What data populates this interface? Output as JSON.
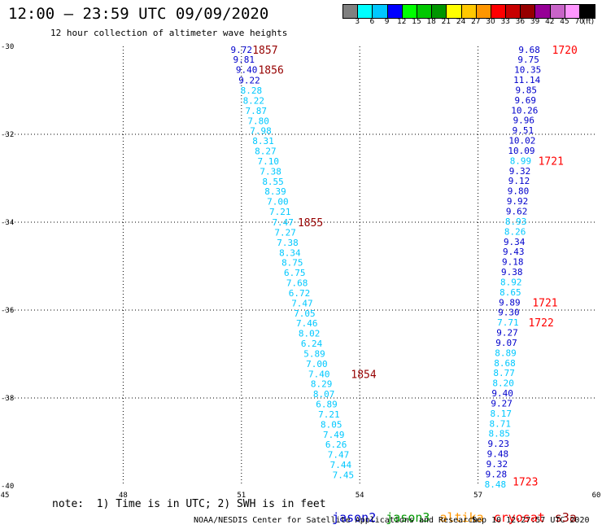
{
  "header": {
    "title": "12:00 — 23:59 UTC 09/09/2020",
    "subtitle": "12 hour collection of altimeter wave heights"
  },
  "colorbar": {
    "colors": [
      "#808080",
      "#00ffff",
      "#00c8ff",
      "#0000ff",
      "#00ff00",
      "#00c800",
      "#009600",
      "#ffff00",
      "#ffc800",
      "#ff9600",
      "#ff0000",
      "#c80000",
      "#960000",
      "#960096",
      "#c864c8",
      "#ff96ff",
      "#000000"
    ],
    "labels": [
      "3",
      "6",
      "9",
      "12",
      "15",
      "18",
      "21",
      "24",
      "27",
      "30",
      "33",
      "36",
      "39",
      "42",
      "45",
      "70",
      "(ft)"
    ]
  },
  "footer": {
    "note": "note:  1) Time is in UTC; 2) SWH is in feet",
    "legend": [
      {
        "name": "jason2",
        "color": "#0000cc"
      },
      {
        "name": "jason3",
        "color": "#009600"
      },
      {
        "name": "altika",
        "color": "#ff9600"
      },
      {
        "name": "cryosat",
        "color": "#ff0000"
      },
      {
        "name": "s3a",
        "color": "#960000"
      }
    ],
    "credit": "NOAA/NESDIS Center for Satellite Applications and Research",
    "timestamp": "Sep 10 12:27:57 UTC 2020"
  },
  "chart_data": {
    "type": "scatter",
    "title": "12:00 — 23:59 UTC 09/09/2020",
    "xlabel": "",
    "ylabel": "",
    "xlim": [
      45,
      60
    ],
    "ylim": [
      -40,
      -30
    ],
    "x_ticks": [
      45,
      48,
      51,
      54,
      57,
      60
    ],
    "y_ticks": [
      -30,
      -32,
      -34,
      -36,
      -38,
      -40
    ],
    "grid": true,
    "series": [
      {
        "name": "s3a",
        "color": "#960000",
        "points": [
          {
            "lon": 51.0,
            "lat": -30.07,
            "swh": "9.72",
            "c": "#0000cc"
          },
          {
            "lon": 51.06,
            "lat": -30.3,
            "swh": "9.81",
            "c": "#0000cc"
          },
          {
            "lon": 51.13,
            "lat": -30.53,
            "swh": "9.40",
            "c": "#0000cc"
          },
          {
            "lon": 51.2,
            "lat": -30.77,
            "swh": "9.22",
            "c": "#0000cc"
          },
          {
            "lon": 51.25,
            "lat": -31.0,
            "swh": "8.28",
            "c": "#00c8ff"
          },
          {
            "lon": 51.31,
            "lat": -31.23,
            "swh": "8.22",
            "c": "#00c8ff"
          },
          {
            "lon": 51.37,
            "lat": -31.46,
            "swh": "7.87",
            "c": "#00c8ff"
          },
          {
            "lon": 51.43,
            "lat": -31.69,
            "swh": "7.80",
            "c": "#00c8ff"
          },
          {
            "lon": 51.49,
            "lat": -31.92,
            "swh": "7.98",
            "c": "#00c8ff"
          },
          {
            "lon": 51.55,
            "lat": -32.15,
            "swh": "8.31",
            "c": "#00c8ff"
          },
          {
            "lon": 51.61,
            "lat": -32.38,
            "swh": "8.27",
            "c": "#00c8ff"
          },
          {
            "lon": 51.68,
            "lat": -32.61,
            "swh": "7.10",
            "c": "#00c8ff"
          },
          {
            "lon": 51.74,
            "lat": -32.84,
            "swh": "7.38",
            "c": "#00c8ff"
          },
          {
            "lon": 51.8,
            "lat": -33.07,
            "swh": "8.55",
            "c": "#00c8ff"
          },
          {
            "lon": 51.86,
            "lat": -33.3,
            "swh": "8.39",
            "c": "#00c8ff"
          },
          {
            "lon": 51.92,
            "lat": -33.53,
            "swh": "7.00",
            "c": "#00c8ff"
          },
          {
            "lon": 51.98,
            "lat": -33.76,
            "swh": "7.21",
            "c": "#00c8ff"
          },
          {
            "lon": 52.05,
            "lat": -34.0,
            "swh": "7.47",
            "c": "#00c8ff"
          },
          {
            "lon": 52.11,
            "lat": -34.23,
            "swh": "7.27",
            "c": "#00c8ff"
          },
          {
            "lon": 52.17,
            "lat": -34.46,
            "swh": "7.38",
            "c": "#00c8ff"
          },
          {
            "lon": 52.23,
            "lat": -34.69,
            "swh": "8.34",
            "c": "#00c8ff"
          },
          {
            "lon": 52.29,
            "lat": -34.92,
            "swh": "8.75",
            "c": "#00c8ff"
          },
          {
            "lon": 52.35,
            "lat": -35.15,
            "swh": "6.75",
            "c": "#00c8ff"
          },
          {
            "lon": 52.41,
            "lat": -35.38,
            "swh": "7.68",
            "c": "#00c8ff"
          },
          {
            "lon": 52.47,
            "lat": -35.61,
            "swh": "6.72",
            "c": "#00c8ff"
          },
          {
            "lon": 52.54,
            "lat": -35.84,
            "swh": "7.47",
            "c": "#00c8ff"
          },
          {
            "lon": 52.6,
            "lat": -36.07,
            "swh": "7.05",
            "c": "#00c8ff"
          },
          {
            "lon": 52.66,
            "lat": -36.3,
            "swh": "7.46",
            "c": "#00c8ff"
          },
          {
            "lon": 52.72,
            "lat": -36.53,
            "swh": "8.02",
            "c": "#00c8ff"
          },
          {
            "lon": 52.78,
            "lat": -36.76,
            "swh": "6.24",
            "c": "#00c8ff"
          },
          {
            "lon": 52.85,
            "lat": -36.99,
            "swh": "5.89",
            "c": "#00c8ff"
          },
          {
            "lon": 52.91,
            "lat": -37.22,
            "swh": "7.00",
            "c": "#00c8ff"
          },
          {
            "lon": 52.97,
            "lat": -37.45,
            "swh": "7.40",
            "c": "#00c8ff"
          },
          {
            "lon": 53.03,
            "lat": -37.68,
            "swh": "8.29",
            "c": "#00c8ff"
          },
          {
            "lon": 53.09,
            "lat": -37.91,
            "swh": "8.07",
            "c": "#00c8ff"
          },
          {
            "lon": 53.16,
            "lat": -38.14,
            "swh": "6.89",
            "c": "#00c8ff"
          },
          {
            "lon": 53.22,
            "lat": -38.37,
            "swh": "7.21",
            "c": "#00c8ff"
          },
          {
            "lon": 53.28,
            "lat": -38.6,
            "swh": "8.05",
            "c": "#00c8ff"
          },
          {
            "lon": 53.34,
            "lat": -38.83,
            "swh": "7.49",
            "c": "#00c8ff"
          },
          {
            "lon": 53.4,
            "lat": -39.06,
            "swh": "6.26",
            "c": "#00c8ff"
          },
          {
            "lon": 53.46,
            "lat": -39.29,
            "swh": "7.47",
            "c": "#00c8ff"
          },
          {
            "lon": 53.52,
            "lat": -39.52,
            "swh": "7.44",
            "c": "#00c8ff"
          },
          {
            "lon": 53.58,
            "lat": -39.75,
            "swh": "7.45",
            "c": "#00c8ff"
          }
        ],
        "time_labels": [
          {
            "lon": 51.6,
            "lat": -30.07,
            "text": "1857"
          },
          {
            "lon": 51.75,
            "lat": -30.53,
            "text": "1856"
          },
          {
            "lon": 52.75,
            "lat": -34.0,
            "text": "1855"
          },
          {
            "lon": 54.1,
            "lat": -37.45,
            "text": "1854"
          }
        ]
      },
      {
        "name": "cryosat",
        "color": "#ff0000",
        "points": [
          {
            "lon": 58.3,
            "lat": -30.07,
            "swh": "9.68",
            "c": "#0000cc"
          },
          {
            "lon": 58.28,
            "lat": -30.3,
            "swh": "9.75",
            "c": "#0000cc"
          },
          {
            "lon": 58.26,
            "lat": -30.53,
            "swh": "10.35",
            "c": "#0000cc"
          },
          {
            "lon": 58.24,
            "lat": -30.76,
            "swh": "11.14",
            "c": "#0000cc"
          },
          {
            "lon": 58.22,
            "lat": -30.99,
            "swh": "9.85",
            "c": "#0000cc"
          },
          {
            "lon": 58.2,
            "lat": -31.22,
            "swh": "9.69",
            "c": "#0000cc"
          },
          {
            "lon": 58.18,
            "lat": -31.45,
            "swh": "10.26",
            "c": "#0000cc"
          },
          {
            "lon": 58.16,
            "lat": -31.68,
            "swh": "9.96",
            "c": "#0000cc"
          },
          {
            "lon": 58.14,
            "lat": -31.91,
            "swh": "9.51",
            "c": "#0000cc"
          },
          {
            "lon": 58.12,
            "lat": -32.14,
            "swh": "10.02",
            "c": "#0000cc"
          },
          {
            "lon": 58.1,
            "lat": -32.37,
            "swh": "10.09",
            "c": "#0000cc"
          },
          {
            "lon": 58.08,
            "lat": -32.6,
            "swh": "8.99",
            "c": "#00c8ff"
          },
          {
            "lon": 58.06,
            "lat": -32.83,
            "swh": "9.32",
            "c": "#0000cc"
          },
          {
            "lon": 58.04,
            "lat": -33.06,
            "swh": "9.12",
            "c": "#0000cc"
          },
          {
            "lon": 58.02,
            "lat": -33.29,
            "swh": "9.80",
            "c": "#0000cc"
          },
          {
            "lon": 58.0,
            "lat": -33.52,
            "swh": "9.92",
            "c": "#0000cc"
          },
          {
            "lon": 57.98,
            "lat": -33.75,
            "swh": "9.62",
            "c": "#0000cc"
          },
          {
            "lon": 57.96,
            "lat": -33.98,
            "swh": "8.93",
            "c": "#00c8ff"
          },
          {
            "lon": 57.94,
            "lat": -34.21,
            "swh": "8.26",
            "c": "#00c8ff"
          },
          {
            "lon": 57.92,
            "lat": -34.44,
            "swh": "9.34",
            "c": "#0000cc"
          },
          {
            "lon": 57.9,
            "lat": -34.67,
            "swh": "9.43",
            "c": "#0000cc"
          },
          {
            "lon": 57.88,
            "lat": -34.9,
            "swh": "9.18",
            "c": "#0000cc"
          },
          {
            "lon": 57.86,
            "lat": -35.13,
            "swh": "9.38",
            "c": "#0000cc"
          },
          {
            "lon": 57.84,
            "lat": -35.36,
            "swh": "8.92",
            "c": "#00c8ff"
          },
          {
            "lon": 57.82,
            "lat": -35.59,
            "swh": "8.65",
            "c": "#00c8ff"
          },
          {
            "lon": 57.8,
            "lat": -35.82,
            "swh": "9.89",
            "c": "#0000cc"
          },
          {
            "lon": 57.78,
            "lat": -36.05,
            "swh": "9.30",
            "c": "#0000cc"
          },
          {
            "lon": 57.76,
            "lat": -36.28,
            "swh": "7.71",
            "c": "#00c8ff"
          },
          {
            "lon": 57.74,
            "lat": -36.51,
            "swh": "9.27",
            "c": "#0000cc"
          },
          {
            "lon": 57.72,
            "lat": -36.74,
            "swh": "9.07",
            "c": "#0000cc"
          },
          {
            "lon": 57.7,
            "lat": -36.97,
            "swh": "8.89",
            "c": "#00c8ff"
          },
          {
            "lon": 57.68,
            "lat": -37.2,
            "swh": "8.68",
            "c": "#00c8ff"
          },
          {
            "lon": 57.66,
            "lat": -37.43,
            "swh": "8.77",
            "c": "#00c8ff"
          },
          {
            "lon": 57.64,
            "lat": -37.66,
            "swh": "8.20",
            "c": "#00c8ff"
          },
          {
            "lon": 57.62,
            "lat": -37.89,
            "swh": "9.40",
            "c": "#0000cc"
          },
          {
            "lon": 57.6,
            "lat": -38.12,
            "swh": "9.27",
            "c": "#0000cc"
          },
          {
            "lon": 57.58,
            "lat": -38.35,
            "swh": "8.17",
            "c": "#00c8ff"
          },
          {
            "lon": 57.56,
            "lat": -38.58,
            "swh": "8.71",
            "c": "#00c8ff"
          },
          {
            "lon": 57.54,
            "lat": -38.81,
            "swh": "8.85",
            "c": "#00c8ff"
          },
          {
            "lon": 57.52,
            "lat": -39.04,
            "swh": "9.23",
            "c": "#0000cc"
          },
          {
            "lon": 57.5,
            "lat": -39.27,
            "swh": "9.48",
            "c": "#0000cc"
          },
          {
            "lon": 57.48,
            "lat": -39.5,
            "swh": "9.32",
            "c": "#0000cc"
          },
          {
            "lon": 57.46,
            "lat": -39.73,
            "swh": "9.28",
            "c": "#0000cc"
          },
          {
            "lon": 57.44,
            "lat": -39.96,
            "swh": "8.48",
            "c": "#00c8ff"
          }
        ],
        "time_labels": [
          {
            "lon": 59.2,
            "lat": -30.07,
            "text": "1720"
          },
          {
            "lon": 58.85,
            "lat": -32.6,
            "text": "1721"
          },
          {
            "lon": 58.7,
            "lat": -35.82,
            "text": "1721"
          },
          {
            "lon": 58.6,
            "lat": -36.28,
            "text": "1722"
          },
          {
            "lon": 58.2,
            "lat": -39.9,
            "text": "1723"
          }
        ]
      }
    ]
  }
}
